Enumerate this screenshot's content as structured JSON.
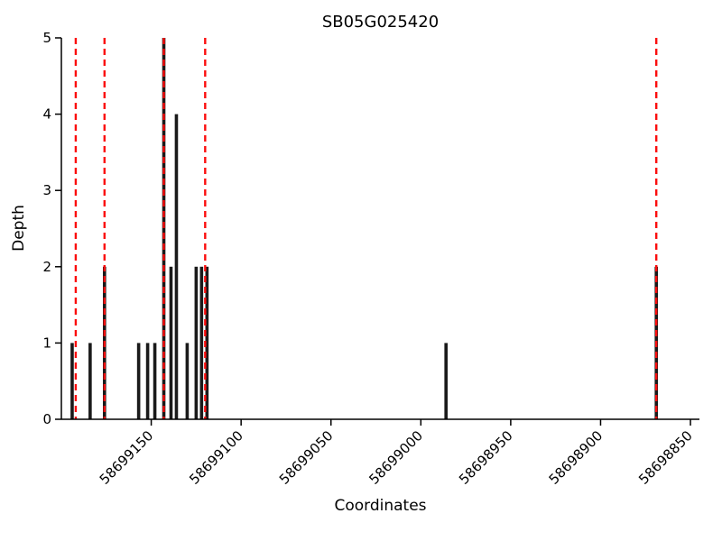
{
  "chart_data": {
    "type": "bar",
    "title": "SB05G025420",
    "xlabel": "Coordinates",
    "ylabel": "Depth",
    "x_axis_reversed": true,
    "xlim": [
      58699200,
      58698845
    ],
    "ylim": [
      0,
      5
    ],
    "xticks": [
      58699150,
      58699100,
      58699050,
      58699000,
      58698950,
      58698900,
      58698850
    ],
    "yticks": [
      0,
      1,
      2,
      3,
      4,
      5
    ],
    "grid": false,
    "legend_position": "none",
    "bars": [
      {
        "x": 58699194,
        "depth": 1
      },
      {
        "x": 58699184,
        "depth": 1
      },
      {
        "x": 58699176,
        "depth": 2
      },
      {
        "x": 58699157,
        "depth": 1
      },
      {
        "x": 58699152,
        "depth": 1
      },
      {
        "x": 58699148,
        "depth": 1
      },
      {
        "x": 58699143,
        "depth": 5
      },
      {
        "x": 58699139,
        "depth": 2
      },
      {
        "x": 58699136,
        "depth": 4
      },
      {
        "x": 58699130,
        "depth": 1
      },
      {
        "x": 58699125,
        "depth": 2
      },
      {
        "x": 58699122,
        "depth": 2
      },
      {
        "x": 58699119,
        "depth": 2
      },
      {
        "x": 58698986,
        "depth": 1
      },
      {
        "x": 58698869,
        "depth": 2
      }
    ],
    "boundary_lines": [
      58699192,
      58699176,
      58699143,
      58699120,
      58698869
    ],
    "colors": {
      "bar": "#1a1a1a",
      "boundary": "#fb0d0d",
      "axis": "#000000",
      "background": "#ffffff"
    }
  }
}
